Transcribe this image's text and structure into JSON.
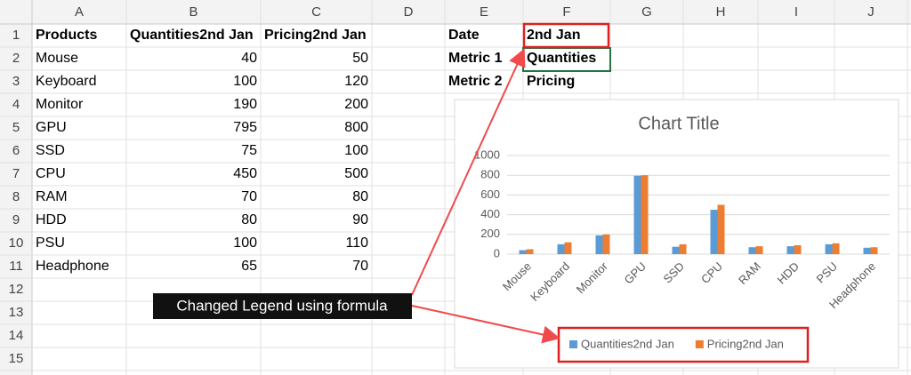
{
  "sheet": {
    "columns": [
      "A",
      "B",
      "C",
      "D",
      "E",
      "F",
      "G",
      "H",
      "I",
      "J"
    ],
    "row_numbers": [
      1,
      2,
      3,
      4,
      5,
      6,
      7,
      8,
      9,
      10,
      11,
      12,
      13,
      14,
      15
    ],
    "rows": [
      {
        "A": "Products",
        "B": "Quantities2nd Jan",
        "C": "Pricing2nd Jan",
        "E": "Date",
        "F": "2nd Jan"
      },
      {
        "A": "Mouse",
        "B": 40,
        "C": 50,
        "E": "Metric 1",
        "F": "Quantities"
      },
      {
        "A": "Keyboard",
        "B": 100,
        "C": 120,
        "E": "Metric 2",
        "F": "Pricing"
      },
      {
        "A": "Monitor",
        "B": 190,
        "C": 200
      },
      {
        "A": "GPU",
        "B": 795,
        "C": 800
      },
      {
        "A": "SSD",
        "B": 75,
        "C": 100
      },
      {
        "A": "CPU",
        "B": 450,
        "C": 500
      },
      {
        "A": "RAM",
        "B": 70,
        "C": 80
      },
      {
        "A": "HDD",
        "B": 80,
        "C": 90
      },
      {
        "A": "PSU",
        "B": 100,
        "C": 110
      },
      {
        "A": "Headphone",
        "B": 65,
        "C": 70
      }
    ]
  },
  "annotation": "Changed Legend using formula",
  "chart_data": {
    "type": "bar",
    "title": "Chart Title",
    "categories": [
      "Mouse",
      "Keyboard",
      "Monitor",
      "GPU",
      "SSD",
      "CPU",
      "RAM",
      "HDD",
      "PSU",
      "Headphone"
    ],
    "series": [
      {
        "name": "Quantities2nd Jan",
        "color": "#5b9bd5",
        "values": [
          40,
          100,
          190,
          795,
          75,
          450,
          70,
          80,
          100,
          65
        ]
      },
      {
        "name": "Pricing2nd Jan",
        "color": "#ed7d31",
        "values": [
          50,
          120,
          200,
          800,
          100,
          500,
          80,
          90,
          110,
          70
        ]
      }
    ],
    "ylim": [
      0,
      1000
    ],
    "yticks": [
      0,
      200,
      400,
      600,
      800,
      1000
    ],
    "grid": true,
    "legend": "bottom"
  }
}
